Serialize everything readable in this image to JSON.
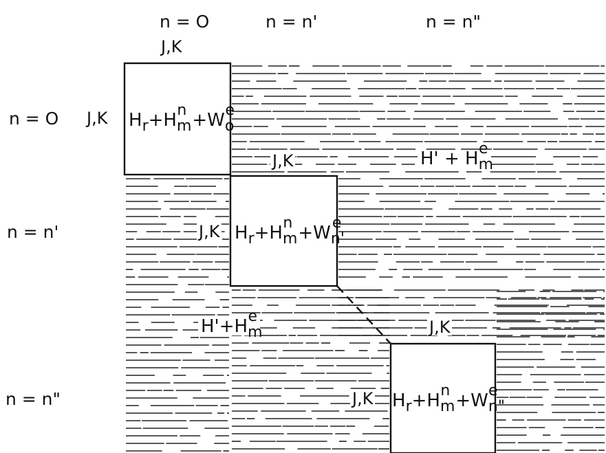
{
  "columns": [
    "n = O",
    "n = n'",
    "n = n\""
  ],
  "rows": [
    "n = O",
    "n = n'",
    "n = n\""
  ],
  "block_index": "J,K",
  "diagonal_blocks": [
    {
      "H": "H",
      "r": "r",
      "Hm": "H",
      "m_sup": "n",
      "m_sub": "m",
      "W": "W",
      "w_sup": "e",
      "w_sub": "o"
    },
    {
      "H": "H",
      "r": "r",
      "Hm": "H",
      "m_sup": "n",
      "m_sub": "m",
      "W": "W",
      "w_sup": "e",
      "w_sub": "n'"
    },
    {
      "H": "H",
      "r": "r",
      "Hm": "H",
      "m_sup": "n",
      "m_sub": "m",
      "W": "W",
      "w_sup": "e",
      "w_sub": "n\""
    }
  ],
  "off_diagonal": {
    "Hp": "H'",
    "Hm": "H",
    "sup": "e",
    "sub": "m"
  }
}
